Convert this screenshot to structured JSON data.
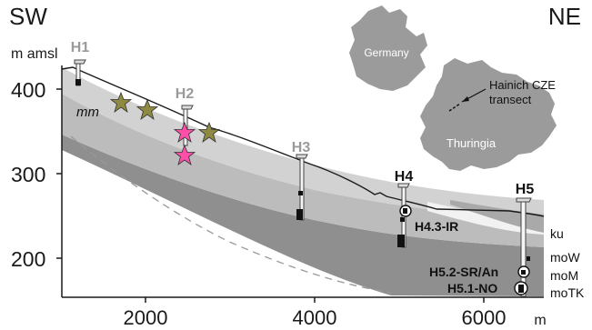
{
  "direction": {
    "left": "SW",
    "right": "NE"
  },
  "y_axis": {
    "label": "m amsl",
    "ticks": [
      "400",
      "300",
      "200"
    ]
  },
  "x_axis": {
    "ticks": [
      "2000",
      "4000",
      "6000"
    ],
    "unit": "m"
  },
  "wells": {
    "h1": "H1",
    "h2": "H2",
    "h3": "H3",
    "h4": "H4",
    "h5": "H5"
  },
  "sampling_points": {
    "h43": "H4.3-IR",
    "h52": "H5.2-SR/An",
    "h51": "H5.1-NO"
  },
  "formations": {
    "ku": "ku",
    "mow": "moW",
    "mom": "moM",
    "motk": "moTK",
    "mm": "mm"
  },
  "inset_map": {
    "germany": "Germany",
    "thuringia": "Thuringia",
    "transect_label": "Hainich CZE\ntransect"
  },
  "colors": {
    "layer_light": "#d2d2d2",
    "layer_mid": "#bcbcbc",
    "layer_dark": "#8f8f8f",
    "ku_layer": "#a9a9a9",
    "map_fill": "#9b9b9b",
    "star_olive": "#8f8a42",
    "star_pink": "#ff4fa8",
    "well_grey_label": "#9a9a9a"
  }
}
